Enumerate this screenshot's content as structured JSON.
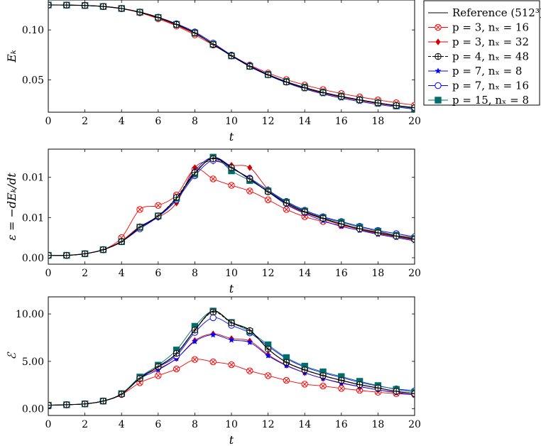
{
  "colors": {
    "reference": "#000000",
    "red": "#ff0000",
    "blue": "#0000ff",
    "teal": "#006d6d",
    "black": "#000000"
  },
  "legend": {
    "placement": "outside-top-right",
    "entries": [
      {
        "key": "ref",
        "label": "Reference (512³)",
        "color": "#000000",
        "marker": "none",
        "dash": "solid"
      },
      {
        "key": "p3n16",
        "label": "p = 3, nₓ = 16",
        "color": "#ff0000",
        "marker": "circle-x",
        "dash": "solid"
      },
      {
        "key": "p3n32",
        "label": "p = 3, nₓ = 32",
        "color": "#d40000",
        "marker": "diamond",
        "dash": "solid"
      },
      {
        "key": "p4n48",
        "label": "p = 4, nₓ = 48",
        "color": "#000000",
        "marker": "plus-circle",
        "dash": "dashed"
      },
      {
        "key": "p7n8",
        "label": "p = 7, nₓ = 8",
        "color": "#0000ff",
        "marker": "star",
        "dash": "solid"
      },
      {
        "key": "p7n16",
        "label": "p = 7, nₓ = 16",
        "color": "#0000ff",
        "marker": "circle",
        "dash": "solid"
      },
      {
        "key": "p15n8",
        "label": "p = 15, nₓ = 8",
        "color": "#006d6d",
        "marker": "square",
        "dash": "solid"
      }
    ]
  },
  "chart_data": [
    {
      "type": "line",
      "xlabel": "t",
      "ylabel": "Eₖ",
      "xlim": [
        0,
        20
      ],
      "ylim": [
        0.0175,
        0.13
      ],
      "xticks": [
        0,
        2,
        4,
        6,
        8,
        10,
        12,
        14,
        16,
        18,
        20
      ],
      "yticks": [
        0.05,
        0.1
      ],
      "ytick_labels": [
        "0.05",
        "0.10"
      ],
      "x": [
        0,
        1,
        2,
        3,
        4,
        5,
        6,
        7,
        8,
        9,
        10,
        11,
        12,
        13,
        14,
        15,
        16,
        17,
        18,
        19,
        20
      ],
      "series": [
        {
          "key": "ref",
          "values": [
            0.125,
            0.1249,
            0.1245,
            0.1235,
            0.1215,
            0.1178,
            0.1125,
            0.1055,
            0.097,
            0.0855,
            0.074,
            0.0635,
            0.055,
            0.0478,
            0.042,
            0.0372,
            0.0332,
            0.0298,
            0.0268,
            0.0242,
            0.022
          ]
        },
        {
          "key": "p3n16",
          "values": [
            0.125,
            0.1249,
            0.1245,
            0.1235,
            0.1212,
            0.1172,
            0.1112,
            0.104,
            0.095,
            0.0848,
            0.0745,
            0.0648,
            0.0568,
            0.0502,
            0.0448,
            0.0402,
            0.0362,
            0.0328,
            0.0298,
            0.027,
            0.0245
          ]
        },
        {
          "key": "p3n32",
          "values": [
            0.125,
            0.1249,
            0.1245,
            0.1235,
            0.1213,
            0.1175,
            0.1118,
            0.1048,
            0.0962,
            0.086,
            0.0742,
            0.0635,
            0.0548,
            0.0475,
            0.0415,
            0.0366,
            0.0326,
            0.0292,
            0.0262,
            0.0236,
            0.0213
          ]
        },
        {
          "key": "p4n48",
          "values": [
            0.125,
            0.1249,
            0.1245,
            0.1235,
            0.1215,
            0.1178,
            0.1125,
            0.1055,
            0.097,
            0.0855,
            0.074,
            0.0635,
            0.055,
            0.0478,
            0.042,
            0.0372,
            0.0332,
            0.0298,
            0.0268,
            0.0242,
            0.022
          ]
        },
        {
          "key": "p7n8",
          "values": [
            0.125,
            0.1249,
            0.1245,
            0.1235,
            0.1215,
            0.1178,
            0.1124,
            0.1054,
            0.0968,
            0.0855,
            0.0742,
            0.0632,
            0.0545,
            0.047,
            0.0408,
            0.0358,
            0.0316,
            0.0282,
            0.0253,
            0.0228,
            0.0205
          ]
        },
        {
          "key": "p7n16",
          "values": [
            0.125,
            0.1249,
            0.1245,
            0.1235,
            0.1215,
            0.1179,
            0.1128,
            0.1062,
            0.098,
            0.0868,
            0.0748,
            0.0642,
            0.0555,
            0.0482,
            0.0423,
            0.0375,
            0.0335,
            0.03,
            0.0268,
            0.024,
            0.0215
          ]
        },
        {
          "key": "p15n8",
          "values": [
            0.125,
            0.1249,
            0.1245,
            0.1235,
            0.1215,
            0.1178,
            0.1125,
            0.1055,
            0.097,
            0.0855,
            0.074,
            0.0635,
            0.0552,
            0.0482,
            0.0425,
            0.0375,
            0.0335,
            0.03,
            0.0268,
            0.0238,
            0.0212
          ]
        }
      ]
    },
    {
      "type": "line",
      "xlabel": "t",
      "ylabel": "ε = −dEₖ/dt",
      "xlim": [
        0,
        20
      ],
      "ylim": [
        -0.0008,
        0.0135
      ],
      "xticks": [
        0,
        2,
        4,
        6,
        8,
        10,
        12,
        14,
        16,
        18,
        20
      ],
      "yticks": [
        0.0,
        0.005,
        0.01
      ],
      "ytick_labels": [
        "0.00",
        "0.01",
        "0.01"
      ],
      "x": [
        0,
        1,
        2,
        3,
        4,
        5,
        6,
        7,
        8,
        9,
        10,
        11,
        12,
        13,
        14,
        15,
        16,
        17,
        18,
        19,
        20
      ],
      "series": [
        {
          "key": "ref",
          "values": [
            0.0003,
            0.0003,
            0.0005,
            0.001,
            0.002,
            0.0038,
            0.0052,
            0.0074,
            0.0105,
            0.0124,
            0.0112,
            0.0098,
            0.0082,
            0.0068,
            0.0057,
            0.0049,
            0.0042,
            0.0036,
            0.0031,
            0.0027,
            0.0023
          ]
        },
        {
          "key": "p3n16",
          "values": [
            0.0003,
            0.0003,
            0.0005,
            0.001,
            0.0025,
            0.006,
            0.0065,
            0.0078,
            0.011,
            0.0098,
            0.009,
            0.0083,
            0.0072,
            0.006,
            0.0051,
            0.0045,
            0.004,
            0.0036,
            0.0032,
            0.0028,
            0.0025
          ]
        },
        {
          "key": "p3n32",
          "values": [
            0.0003,
            0.0003,
            0.0005,
            0.001,
            0.0021,
            0.0039,
            0.005,
            0.0068,
            0.0112,
            0.012,
            0.0115,
            0.0112,
            0.0085,
            0.0067,
            0.0056,
            0.0048,
            0.0041,
            0.0035,
            0.003,
            0.0026,
            0.0022
          ]
        },
        {
          "key": "p4n48",
          "values": [
            0.0003,
            0.0003,
            0.0005,
            0.001,
            0.002,
            0.0038,
            0.0052,
            0.0075,
            0.0106,
            0.0123,
            0.0112,
            0.0098,
            0.0082,
            0.0068,
            0.0057,
            0.0049,
            0.0042,
            0.0036,
            0.0031,
            0.0027,
            0.0023
          ]
        },
        {
          "key": "p7n8",
          "values": [
            0.0003,
            0.0003,
            0.0005,
            0.001,
            0.002,
            0.0037,
            0.0051,
            0.0072,
            0.0108,
            0.0125,
            0.0113,
            0.0097,
            0.0082,
            0.0066,
            0.0055,
            0.0046,
            0.0039,
            0.0034,
            0.0029,
            0.0025,
            0.0021
          ]
        },
        {
          "key": "p7n16",
          "values": [
            0.0003,
            0.0003,
            0.0005,
            0.001,
            0.002,
            0.0036,
            0.0051,
            0.0072,
            0.0102,
            0.0121,
            0.0111,
            0.0099,
            0.0084,
            0.007,
            0.0059,
            0.0051,
            0.0045,
            0.0039,
            0.0034,
            0.003,
            0.0026
          ]
        },
        {
          "key": "p15n8",
          "values": [
            0.0003,
            0.0003,
            0.0005,
            0.001,
            0.002,
            0.0038,
            0.0052,
            0.0074,
            0.0104,
            0.0125,
            0.0108,
            0.0096,
            0.0083,
            0.0069,
            0.0058,
            0.005,
            0.0044,
            0.0038,
            0.0033,
            0.0028,
            0.0024
          ]
        }
      ]
    },
    {
      "type": "line",
      "xlabel": "t",
      "ylabel": "ℰ",
      "xlim": [
        0,
        20
      ],
      "ylim": [
        -0.7,
        11.8
      ],
      "xticks": [
        0,
        2,
        4,
        6,
        8,
        10,
        12,
        14,
        16,
        18,
        20
      ],
      "yticks": [
        0.0,
        5.0,
        10.0
      ],
      "ytick_labels": [
        "0.00",
        "5.00",
        "10.00"
      ],
      "x": [
        0,
        1,
        2,
        3,
        4,
        5,
        6,
        7,
        8,
        9,
        10,
        11,
        12,
        13,
        14,
        15,
        16,
        17,
        18,
        19,
        20
      ],
      "series": [
        {
          "key": "ref",
          "values": [
            0.38,
            0.43,
            0.52,
            0.82,
            1.55,
            3.2,
            4.45,
            5.8,
            8.3,
            10.3,
            9.1,
            8.3,
            6.3,
            4.9,
            4.1,
            3.5,
            3.0,
            2.55,
            2.2,
            1.85,
            1.6
          ]
        },
        {
          "key": "p3n16",
          "values": [
            0.38,
            0.43,
            0.52,
            0.82,
            1.5,
            2.75,
            3.5,
            4.2,
            5.2,
            4.95,
            4.65,
            4.0,
            3.5,
            3.0,
            2.6,
            2.4,
            2.15,
            1.95,
            1.75,
            1.6,
            1.5
          ]
        },
        {
          "key": "p3n32",
          "values": [
            0.38,
            0.43,
            0.52,
            0.82,
            1.52,
            3.35,
            4.2,
            5.3,
            7.2,
            7.9,
            7.4,
            7.15,
            5.7,
            4.6,
            3.8,
            3.2,
            2.75,
            2.35,
            2.0,
            1.75,
            1.45
          ]
        },
        {
          "key": "p4n48",
          "values": [
            0.38,
            0.43,
            0.52,
            0.82,
            1.55,
            3.2,
            4.45,
            5.85,
            8.3,
            10.2,
            9.05,
            8.25,
            6.3,
            4.9,
            4.1,
            3.5,
            3.0,
            2.55,
            2.2,
            1.85,
            1.6
          ]
        },
        {
          "key": "p7n8",
          "values": [
            0.38,
            0.43,
            0.52,
            0.82,
            1.55,
            3.2,
            4.1,
            5.3,
            7.1,
            7.8,
            7.25,
            7.0,
            5.6,
            4.55,
            3.8,
            3.2,
            2.7,
            2.35,
            2.0,
            1.7,
            1.45
          ]
        },
        {
          "key": "p7n16",
          "values": [
            0.38,
            0.43,
            0.52,
            0.82,
            1.55,
            3.3,
            4.4,
            5.6,
            8.05,
            9.6,
            8.8,
            8.0,
            6.6,
            5.3,
            4.4,
            3.8,
            3.3,
            2.8,
            2.4,
            2.1,
            1.9
          ]
        },
        {
          "key": "p15n8",
          "values": [
            0.38,
            0.43,
            0.52,
            0.82,
            1.6,
            3.35,
            4.6,
            6.2,
            8.7,
            10.3,
            9.1,
            8.15,
            6.75,
            5.4,
            4.5,
            3.9,
            3.4,
            2.9,
            2.45,
            2.05,
            1.75
          ]
        }
      ]
    }
  ]
}
